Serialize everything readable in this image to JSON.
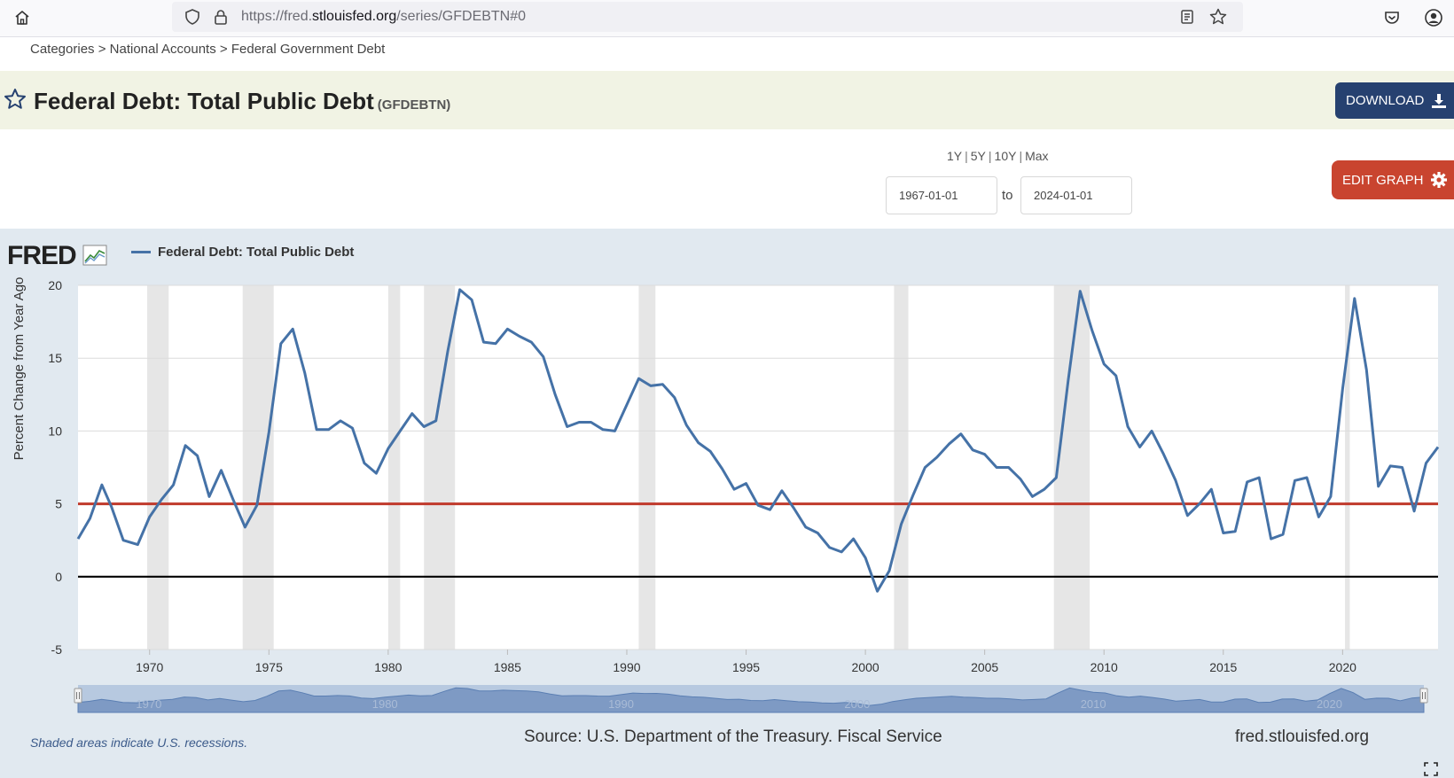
{
  "browser": {
    "url_scheme": "https://fred.",
    "url_host": "stlouisfed.org",
    "url_path": "/series/GFDEBTN#0"
  },
  "breadcrumb": {
    "items": [
      "Categories",
      "National Accounts",
      "Federal Government Debt"
    ],
    "separator": ">"
  },
  "series": {
    "title": "Federal Debt: Total Public Debt",
    "id": "(GFDEBTN)"
  },
  "actions": {
    "download_label": "DOWNLOAD",
    "edit_graph_label": "EDIT GRAPH"
  },
  "date_range": {
    "presets": [
      "1Y",
      "5Y",
      "10Y",
      "Max"
    ],
    "start": "1967-01-01",
    "to_label": "to",
    "end": "2024-01-01"
  },
  "graph": {
    "logo": "FRED",
    "legend_label": "Federal Debt: Total Public Debt",
    "shaded_note": "Shaded areas indicate U.S. recessions.",
    "source": "Source: U.S. Department of the Treasury. Fiscal Service",
    "site": "fred.stlouisfed.org"
  },
  "colors": {
    "series_line": "#4572a7",
    "reference_line": "#c0392b",
    "zero_line": "#000000",
    "recession_shading": "#e6e6e6",
    "panel_background": "#e1e9f0",
    "download_button": "#264170",
    "edit_button": "#c9442f"
  },
  "chart_data": {
    "type": "line",
    "ylabel": "Percent Change from Year Ago",
    "xlim": [
      1967,
      2024
    ],
    "ylim": [
      -5,
      20
    ],
    "y_ticks": [
      "20",
      "15",
      "10",
      "5",
      "0",
      "-5"
    ],
    "x_ticks": [
      "1970",
      "1975",
      "1980",
      "1985",
      "1990",
      "1995",
      "2000",
      "2005",
      "2010",
      "2015",
      "2020"
    ],
    "navigator_ticks": [
      "1970",
      "1980",
      "1990",
      "2000",
      "2010",
      "2020"
    ],
    "reference_lines": [
      {
        "value": 5,
        "color": "#c0392b"
      },
      {
        "value": 0,
        "color": "#000000"
      }
    ],
    "recessions": [
      [
        1969.9,
        1970.8
      ],
      [
        1973.9,
        1975.2
      ],
      [
        1980.0,
        1980.5
      ],
      [
        1981.5,
        1982.8
      ],
      [
        1990.5,
        1991.2
      ],
      [
        2001.2,
        2001.8
      ],
      [
        2007.9,
        2009.4
      ],
      [
        2020.1,
        2020.3
      ]
    ],
    "series": [
      {
        "name": "Federal Debt: Total Public Debt",
        "x": [
          1967.0,
          1967.5,
          1968.0,
          1968.4,
          1968.9,
          1969.5,
          1970.0,
          1970.5,
          1971.0,
          1971.5,
          1972.0,
          1972.5,
          1973.0,
          1973.5,
          1974.0,
          1974.5,
          1975.0,
          1975.5,
          1976.0,
          1976.5,
          1977.0,
          1977.5,
          1978.0,
          1978.5,
          1979.0,
          1979.5,
          1980.0,
          1980.5,
          1981.0,
          1981.5,
          1982.0,
          1982.5,
          1983.0,
          1983.5,
          1984.0,
          1984.5,
          1985.0,
          1985.5,
          1986.0,
          1986.5,
          1987.0,
          1987.5,
          1988.0,
          1988.5,
          1989.0,
          1989.5,
          1990.0,
          1990.5,
          1991.0,
          1991.5,
          1992.0,
          1992.5,
          1993.0,
          1993.5,
          1994.0,
          1994.5,
          1995.0,
          1995.5,
          1996.0,
          1996.5,
          1997.0,
          1997.5,
          1998.0,
          1998.5,
          1999.0,
          1999.5,
          2000.0,
          2000.5,
          2001.0,
          2001.5,
          2002.0,
          2002.5,
          2003.0,
          2003.5,
          2004.0,
          2004.5,
          2005.0,
          2005.5,
          2006.0,
          2006.5,
          2007.0,
          2007.5,
          2008.0,
          2008.5,
          2009.0,
          2009.5,
          2010.0,
          2010.5,
          2011.0,
          2011.5,
          2012.0,
          2012.5,
          2013.0,
          2013.5,
          2014.0,
          2014.5,
          2015.0,
          2015.5,
          2016.0,
          2016.5,
          2017.0,
          2017.5,
          2018.0,
          2018.5,
          2019.0,
          2019.5,
          2020.0,
          2020.5,
          2021.0,
          2021.5,
          2022.0,
          2022.5,
          2023.0,
          2023.5,
          2024.0
        ],
        "values": [
          2.6,
          4.0,
          6.3,
          4.8,
          2.5,
          2.2,
          4.1,
          5.3,
          6.3,
          9.0,
          8.3,
          5.5,
          7.3,
          5.3,
          3.4,
          4.9,
          9.9,
          16.0,
          17.0,
          14.0,
          10.1,
          10.1,
          10.7,
          10.2,
          7.8,
          7.1,
          8.8,
          10.0,
          11.2,
          10.3,
          10.7,
          15.5,
          19.7,
          19.0,
          16.1,
          16.0,
          17.0,
          16.5,
          16.1,
          15.1,
          12.5,
          10.3,
          10.6,
          10.6,
          10.1,
          10.0,
          11.8,
          13.6,
          13.1,
          13.2,
          12.3,
          10.4,
          9.2,
          8.6,
          7.4,
          6.0,
          6.4,
          4.9,
          4.6,
          5.9,
          4.7,
          3.4,
          3.0,
          2.0,
          1.7,
          2.6,
          1.3,
          -1.0,
          0.4,
          3.6,
          5.6,
          7.5,
          8.2,
          9.1,
          9.8,
          8.7,
          8.4,
          7.5,
          7.5,
          6.7,
          5.5,
          6.0,
          6.8,
          13.5,
          19.6,
          16.9,
          14.6,
          13.8,
          10.3,
          8.9,
          10.0,
          8.4,
          6.6,
          4.2,
          5.0,
          6.0,
          3.0,
          3.1,
          6.5,
          6.8,
          2.6,
          2.9,
          6.6,
          6.8,
          4.1,
          5.5,
          12.9,
          19.1,
          14.2,
          6.2,
          7.6,
          7.5,
          4.5,
          7.8,
          8.9
        ]
      }
    ]
  }
}
